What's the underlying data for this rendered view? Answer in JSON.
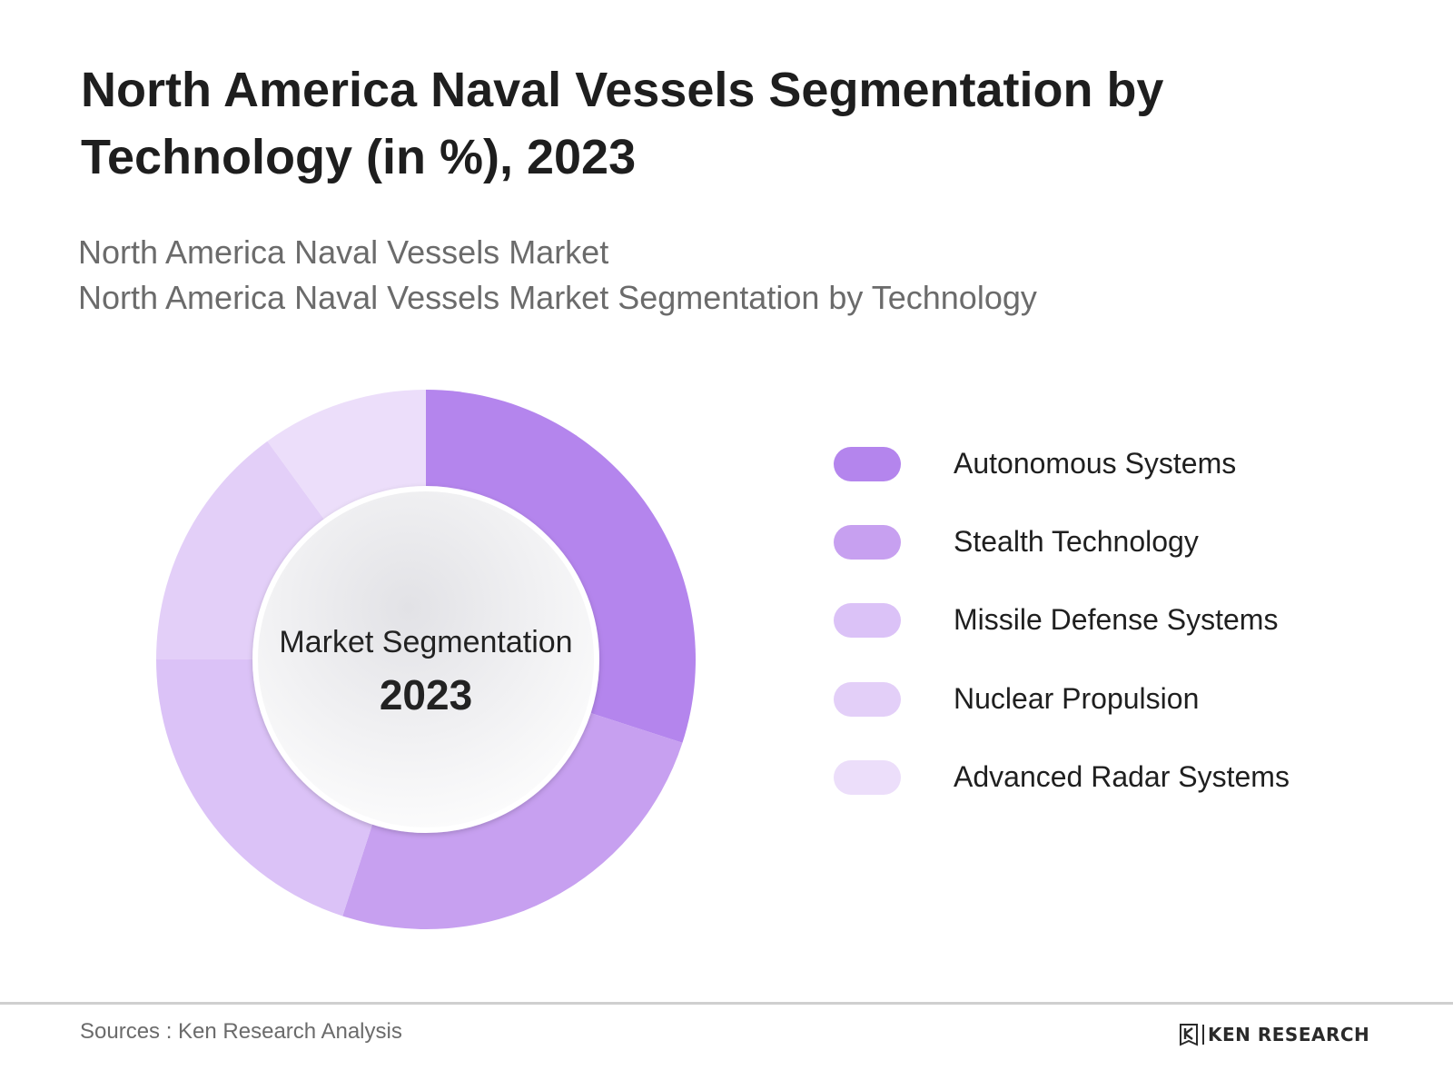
{
  "header": {
    "title": "North America Naval Vessels Segmentation by Technology (in %), 2023",
    "subtitle_1": "North America Naval Vessels Market",
    "subtitle_2": "North America Naval Vessels Market Segmentation by Technology"
  },
  "chart_data": {
    "type": "pie",
    "style": "donut",
    "title": "North America Naval Vessels Segmentation by Technology (in %), 2023",
    "center_label": "Market Segmentation",
    "center_year": "2023",
    "unit": "%",
    "legend_position": "right",
    "categories": [
      "Autonomous Systems",
      "Stealth Technology",
      "Missile Defense Systems",
      "Nuclear Propulsion",
      "Advanced Radar Systems"
    ],
    "values": [
      30,
      25,
      20,
      15,
      10
    ],
    "colors": [
      "#b485ed",
      "#c7a0f0",
      "#dbc2f7",
      "#e3cff8",
      "#ecdefa"
    ]
  },
  "footer": {
    "source": "Sources : Ken Research Analysis",
    "brand": "KEN RESEARCH"
  }
}
